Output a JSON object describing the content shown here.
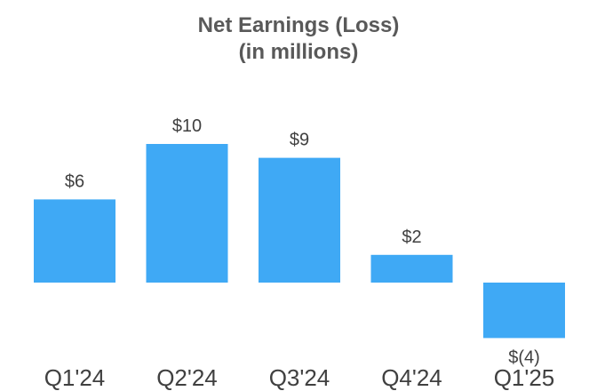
{
  "chart_data": {
    "type": "bar",
    "title": "Net Earnings (Loss)",
    "subtitle": "(in millions)",
    "categories": [
      "Q1'24",
      "Q2'24",
      "Q3'24",
      "Q4'24",
      "Q1'25"
    ],
    "values": [
      6,
      10,
      9,
      2,
      -4
    ],
    "data_labels": [
      "$6",
      "$10",
      "$9",
      "$2",
      "$(4)"
    ],
    "xlabel": "",
    "ylabel": "",
    "ylim": [
      -4,
      10
    ],
    "grid": false,
    "legend": "none",
    "bar_color": "#3FA9F5"
  },
  "colors": {
    "bar": "#3FA9F5",
    "title": "#595959",
    "label": "#404040",
    "background": "#FFFFFF"
  }
}
